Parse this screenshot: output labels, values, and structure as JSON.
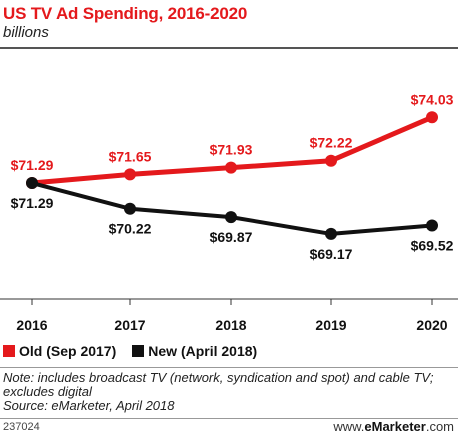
{
  "title": "US TV Ad Spending, 2016-2020",
  "subtitle": "billions",
  "chart_data": {
    "type": "line",
    "title": "US TV Ad Spending, 2016-2020",
    "subtitle": "billions",
    "x": [
      "2016",
      "2017",
      "2018",
      "2019",
      "2020"
    ],
    "ylim": [
      66,
      76
    ],
    "grid": false,
    "legend_position": "bottom-left",
    "series": [
      {
        "name": "Old (Sep 2017)",
        "color": "#e4191c",
        "values": [
          71.29,
          71.65,
          71.93,
          72.22,
          74.03
        ],
        "labels": [
          "$71.29",
          "$71.65",
          "$71.93",
          "$72.22",
          "$74.03"
        ]
      },
      {
        "name": "New (April 2018)",
        "color": "#111111",
        "values": [
          71.29,
          70.22,
          69.87,
          69.17,
          69.52
        ],
        "labels": [
          "$71.29",
          "$70.22",
          "$69.87",
          "$69.17",
          "$69.52"
        ]
      }
    ]
  },
  "legend": {
    "old_label": "Old (Sep 2017)",
    "new_label": "New (April 2018)"
  },
  "note_line1": "Note: includes broadcast TV (network, syndication and spot) and cable TV;",
  "note_line2": "excludes digital",
  "source": "Source: eMarketer, April 2018",
  "chart_id": "237024",
  "brand": {
    "prefix": "www.",
    "name": "eMarketer",
    "suffix": ".com"
  }
}
